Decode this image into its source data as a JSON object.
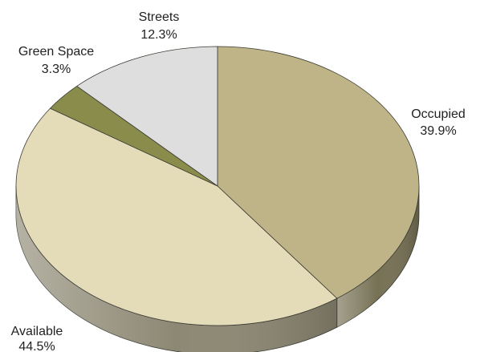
{
  "chart_data": {
    "type": "pie",
    "title": "",
    "slices": [
      {
        "label": "Occupied",
        "value": 39.9,
        "value_label": "39.9%",
        "color": "#bfb488"
      },
      {
        "label": "Available",
        "value": 44.5,
        "value_label": "44.5%",
        "color": "#e4dbb9"
      },
      {
        "label": "Green Space",
        "value": 3.3,
        "value_label": "3.3%",
        "color": "#8a8c4c"
      },
      {
        "label": "Streets",
        "value": 12.3,
        "value_label": "12.3%",
        "color": "#dedede"
      }
    ],
    "style": "3d-tilted",
    "start": "12 o'clock",
    "direction": "clockwise"
  }
}
